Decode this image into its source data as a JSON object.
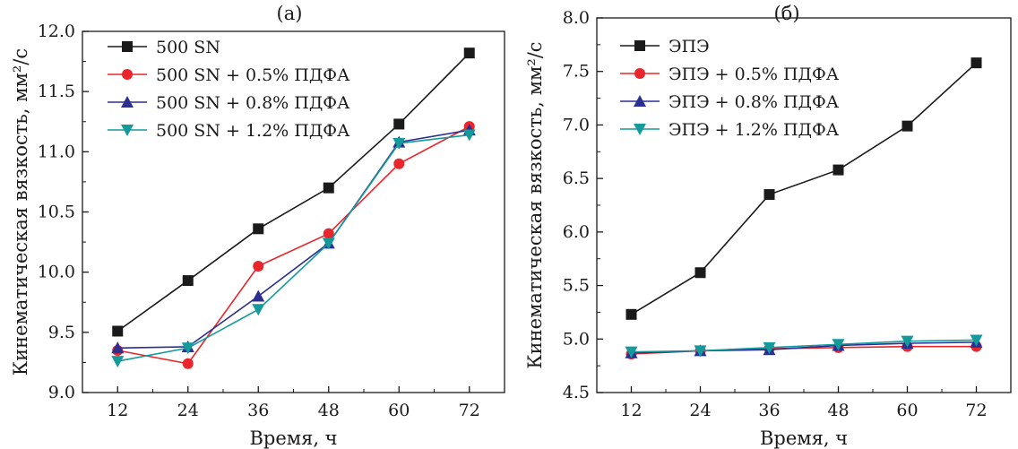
{
  "chart_data": [
    {
      "type": "line",
      "title": "(а)",
      "xlabel": "Время, ч",
      "ylabel": "Кинематическая вязкость, мм²/с",
      "x": [
        12,
        24,
        36,
        48,
        60,
        72
      ],
      "xlim": [
        6,
        78
      ],
      "ylim": [
        9.0,
        12.0
      ],
      "yticks": [
        "9.0",
        "9.5",
        "10.0",
        "10.5",
        "11.0",
        "11.5",
        "12.0"
      ],
      "xticks": [
        "12",
        "24",
        "36",
        "48",
        "60",
        "72"
      ],
      "legend_position": "top-left",
      "grid": false,
      "series": [
        {
          "name": "500 SN",
          "color": "#1a1a1a",
          "marker": "square",
          "values": [
            9.51,
            9.93,
            10.36,
            10.7,
            11.23,
            11.82
          ]
        },
        {
          "name": "500 SN + 0.5%  ПДФА",
          "color": "#e8262b",
          "marker": "circle",
          "values": [
            9.35,
            9.24,
            10.05,
            10.32,
            10.9,
            11.21
          ]
        },
        {
          "name": "500 SN + 0.8%  ПДФА",
          "color": "#2b2f92",
          "marker": "triangle-up",
          "values": [
            9.37,
            9.38,
            9.8,
            10.24,
            11.08,
            11.18
          ]
        },
        {
          "name": "500 SN + 1.2%  ПДФА",
          "color": "#159a9c",
          "marker": "triangle-down",
          "values": [
            9.26,
            9.37,
            9.69,
            10.24,
            11.07,
            11.14
          ]
        }
      ]
    },
    {
      "type": "line",
      "title": "(б)",
      "xlabel": "Время, ч",
      "ylabel": "Кинематическая вязкость, мм²/с",
      "x": [
        12,
        24,
        36,
        48,
        60,
        72
      ],
      "xlim": [
        6,
        78
      ],
      "ylim": [
        4.5,
        8.0
      ],
      "yticks": [
        "4.5",
        "5.0",
        "5.5",
        "6.0",
        "6.5",
        "7.0",
        "7.5",
        "8.0"
      ],
      "xticks": [
        "12",
        "24",
        "36",
        "48",
        "60",
        "72"
      ],
      "legend_position": "top-left",
      "grid": false,
      "series": [
        {
          "name": "ЭПЭ",
          "color": "#1a1a1a",
          "marker": "square",
          "values": [
            5.23,
            5.62,
            6.35,
            6.58,
            6.99,
            7.58
          ]
        },
        {
          "name": "ЭПЭ + 0.5%  ПДФА",
          "color": "#e8262b",
          "marker": "circle",
          "values": [
            4.86,
            4.89,
            4.91,
            4.92,
            4.93,
            4.93
          ]
        },
        {
          "name": "ЭПЭ + 0.8%  ПДФА",
          "color": "#2b2f92",
          "marker": "triangle-up",
          "values": [
            4.87,
            4.89,
            4.9,
            4.94,
            4.96,
            4.97
          ]
        },
        {
          "name": "ЭПЭ + 1.2%  ПДФА",
          "color": "#159a9c",
          "marker": "triangle-down",
          "values": [
            4.88,
            4.89,
            4.92,
            4.95,
            4.98,
            4.99
          ]
        }
      ]
    }
  ]
}
